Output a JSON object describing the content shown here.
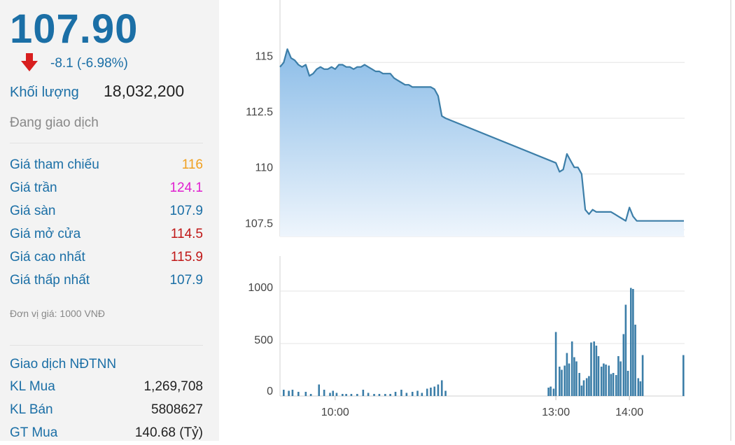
{
  "quote": {
    "price": "107.90",
    "change": "-8.1 (-6.98%)",
    "volume_label": "Khối lượng",
    "volume": "18,032,200",
    "status": "Đang giao dịch",
    "rows": [
      {
        "label": "Giá tham chiếu",
        "value": "116",
        "color": "#f0a020"
      },
      {
        "label": "Giá trần",
        "value": "124.1",
        "color": "#e020d0"
      },
      {
        "label": "Giá sàn",
        "value": "107.9",
        "color": "#1b6fa6"
      },
      {
        "label": "Giá mở cửa",
        "value": "114.5",
        "color": "#c01818"
      },
      {
        "label": "Giá cao nhất",
        "value": "115.9",
        "color": "#c01818"
      },
      {
        "label": "Giá thấp nhất",
        "value": "107.9",
        "color": "#1b6fa6"
      }
    ],
    "unit_note": "Đơn vị giá: 1000 VNĐ",
    "foreign": {
      "title": "Giao dịch NĐTNN",
      "rows": [
        {
          "label": "KL Mua",
          "value": "1,269,708"
        },
        {
          "label": "KL Bán",
          "value": "5808627"
        },
        {
          "label": "GT Mua",
          "value": "140.68 (Tỷ)"
        }
      ]
    }
  },
  "colors": {
    "accent": "#1b6fa6",
    "down": "#d81e1e",
    "line": "#3c7ea8",
    "area_top": "#8cbde8",
    "bar": "#3c7ea8"
  },
  "chart_data": [
    {
      "type": "area",
      "title": "",
      "ylabel": "",
      "ylim": [
        107.2,
        117.8
      ],
      "yticks": [
        107.5,
        110,
        112.5,
        115
      ],
      "ytick_labels": [
        "107.5",
        "110",
        "112.5",
        "115"
      ],
      "x_range": [
        9.25,
        14.75
      ],
      "xticks": [
        10,
        13,
        14
      ],
      "xtick_labels": [
        "10:00",
        "13:00",
        "14:00"
      ],
      "x": [
        9.25,
        9.3,
        9.35,
        9.4,
        9.45,
        9.5,
        9.55,
        9.6,
        9.65,
        9.7,
        9.75,
        9.8,
        9.85,
        9.9,
        9.95,
        10.0,
        10.05,
        10.1,
        10.15,
        10.2,
        10.25,
        10.3,
        10.35,
        10.4,
        10.45,
        10.5,
        10.55,
        10.6,
        10.65,
        10.7,
        10.75,
        10.8,
        10.85,
        10.9,
        10.95,
        11.0,
        11.05,
        11.1,
        11.15,
        11.2,
        11.25,
        11.3,
        11.35,
        11.4,
        11.45,
        11.5,
        13.0,
        13.05,
        13.1,
        13.15,
        13.2,
        13.25,
        13.3,
        13.35,
        13.4,
        13.45,
        13.5,
        13.55,
        13.6,
        13.65,
        13.7,
        13.75,
        13.8,
        13.85,
        13.9,
        13.95,
        14.0,
        14.05,
        14.1,
        14.15,
        14.2,
        14.25,
        14.3,
        14.35,
        14.4,
        14.45,
        14.5
      ],
      "values": [
        114.8,
        115.0,
        115.6,
        115.2,
        115.1,
        114.9,
        114.8,
        114.9,
        114.4,
        114.5,
        114.7,
        114.8,
        114.7,
        114.7,
        114.8,
        114.7,
        114.9,
        114.9,
        114.8,
        114.8,
        114.7,
        114.8,
        114.8,
        114.9,
        114.8,
        114.7,
        114.6,
        114.6,
        114.5,
        114.5,
        114.5,
        114.3,
        114.2,
        114.1,
        114.0,
        114.0,
        113.9,
        113.9,
        113.9,
        113.9,
        113.9,
        113.9,
        113.8,
        113.5,
        112.6,
        112.5,
        110.5,
        110.1,
        110.2,
        110.9,
        110.6,
        110.3,
        110.3,
        110.0,
        108.4,
        108.2,
        108.4,
        108.3,
        108.3,
        108.3,
        108.3,
        108.3,
        108.2,
        108.1,
        108.0,
        107.9,
        108.5,
        108.1,
        107.9,
        107.9,
        107.9,
        107.9,
        107.9,
        107.9,
        107.9,
        107.9,
        107.9
      ]
    },
    {
      "type": "bar",
      "title": "",
      "ylabel": "",
      "ylim": [
        0,
        1200
      ],
      "yticks": [
        0,
        500,
        1000
      ],
      "ytick_labels": [
        "0",
        "500",
        "1000"
      ],
      "x_range": [
        9.25,
        14.75
      ],
      "xticks": [
        10,
        13,
        14
      ],
      "xtick_labels": [
        "10:00",
        "13:00",
        "14:00"
      ],
      "x": [
        9.3,
        9.37,
        9.42,
        9.5,
        9.6,
        9.67,
        9.78,
        9.85,
        9.93,
        9.97,
        10.02,
        10.1,
        10.15,
        10.22,
        10.3,
        10.38,
        10.45,
        10.53,
        10.6,
        10.68,
        10.75,
        10.82,
        10.9,
        10.97,
        11.05,
        11.12,
        11.18,
        11.25,
        11.3,
        11.35,
        11.4,
        11.45,
        11.5,
        12.9,
        12.93,
        12.97,
        13.0,
        13.05,
        13.08,
        13.12,
        13.15,
        13.18,
        13.22,
        13.25,
        13.28,
        13.32,
        13.35,
        13.38,
        13.42,
        13.45,
        13.48,
        13.52,
        13.55,
        13.58,
        13.62,
        13.65,
        13.68,
        13.72,
        13.75,
        13.78,
        13.82,
        13.85,
        13.88,
        13.92,
        13.95,
        13.98,
        14.02,
        14.05,
        14.08,
        14.12,
        14.15,
        14.18,
        14.22,
        14.25,
        14.28,
        14.32,
        14.35
      ],
      "values": [
        60,
        50,
        60,
        40,
        40,
        20,
        110,
        60,
        30,
        50,
        30,
        20,
        20,
        20,
        20,
        60,
        30,
        20,
        20,
        20,
        20,
        40,
        60,
        30,
        40,
        50,
        30,
        70,
        80,
        90,
        110,
        150,
        50,
        80,
        90,
        70,
        610,
        280,
        250,
        290,
        410,
        310,
        520,
        370,
        330,
        220,
        100,
        150,
        170,
        190,
        510,
        520,
        480,
        380,
        280,
        310,
        300,
        290,
        210,
        220,
        200,
        380,
        330,
        590,
        870,
        240,
        1030,
        1020,
        680,
        170,
        140,
        390,
        0,
        0,
        0,
        0,
        0
      ]
    }
  ]
}
